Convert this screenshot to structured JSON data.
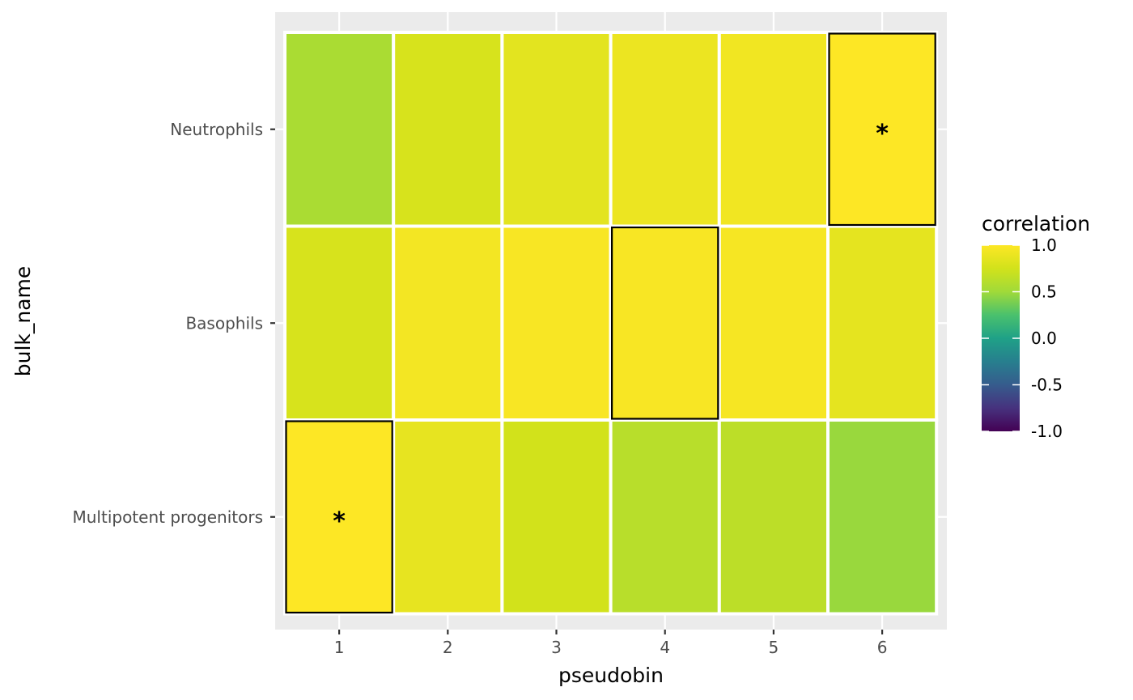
{
  "chart_data": {
    "type": "heatmap",
    "xlabel": "pseudobin",
    "ylabel": "bulk_name",
    "x_categories": [
      "1",
      "2",
      "3",
      "4",
      "5",
      "6"
    ],
    "y_categories": [
      "Neutrophils",
      "Basophils",
      "Multipotent progenitors"
    ],
    "values": [
      [
        0.55,
        0.78,
        0.85,
        0.9,
        0.93,
        1.0
      ],
      [
        0.78,
        0.94,
        0.97,
        0.97,
        0.96,
        0.86
      ],
      [
        1.0,
        0.87,
        0.75,
        0.62,
        0.64,
        0.48
      ]
    ],
    "highlighted": [
      {
        "row": 0,
        "col": 5,
        "mark": "*"
      },
      {
        "row": 1,
        "col": 3,
        "mark": ""
      },
      {
        "row": 2,
        "col": 0,
        "mark": "*"
      }
    ],
    "legend": {
      "title": "correlation",
      "ticks": [
        "1.0",
        "0.5",
        "0.0",
        "-0.5",
        "-1.0"
      ],
      "tick_values": [
        1.0,
        0.5,
        0.0,
        -0.5,
        -1.0
      ],
      "range": [
        -1.0,
        1.0
      ],
      "palette": "viridis",
      "placement": "right"
    },
    "panel_background": "#ebebeb",
    "grid": true,
    "highlight_color": "#000000"
  }
}
